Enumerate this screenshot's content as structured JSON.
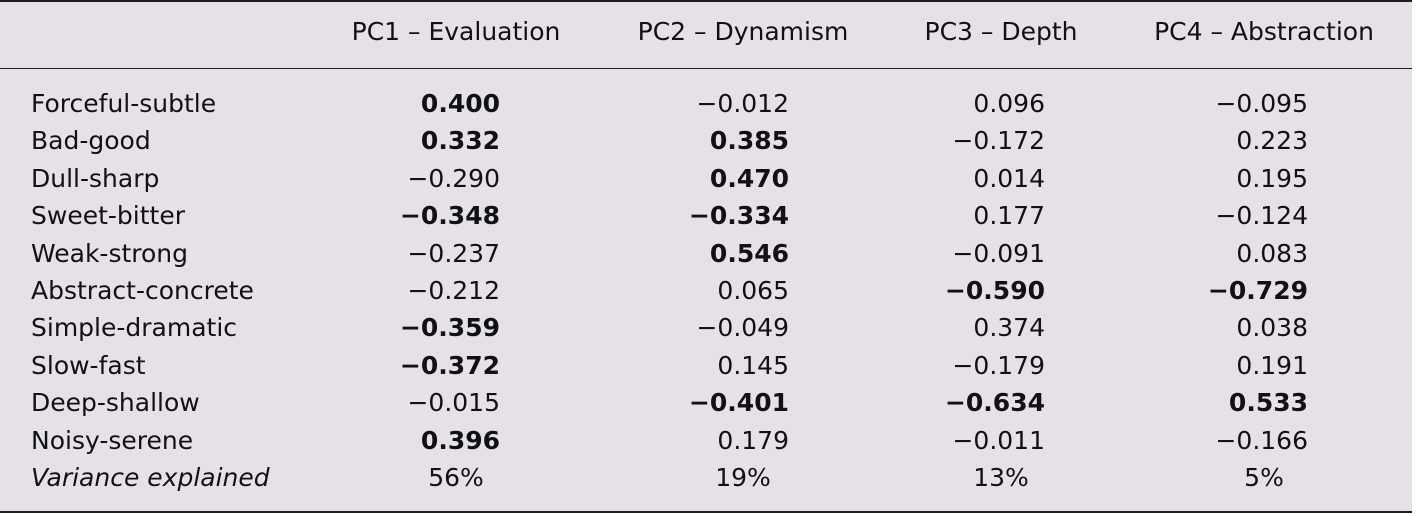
{
  "table": {
    "headers": [
      "",
      "PC1 – Evaluation",
      "PC2 – Dynamism",
      "PC3 – Depth",
      "PC4 – Abstraction"
    ],
    "rows": [
      {
        "label": "Forceful-subtle",
        "values": [
          {
            "text": "0.400",
            "bold": true
          },
          {
            "text": "−0.012",
            "bold": false
          },
          {
            "text": "0.096",
            "bold": false
          },
          {
            "text": "−0.095",
            "bold": false
          }
        ]
      },
      {
        "label": "Bad-good",
        "values": [
          {
            "text": "0.332",
            "bold": true
          },
          {
            "text": "0.385",
            "bold": true
          },
          {
            "text": "−0.172",
            "bold": false
          },
          {
            "text": "0.223",
            "bold": false
          }
        ]
      },
      {
        "label": "Dull-sharp",
        "values": [
          {
            "text": "−0.290",
            "bold": false
          },
          {
            "text": "0.470",
            "bold": true
          },
          {
            "text": "0.014",
            "bold": false
          },
          {
            "text": "0.195",
            "bold": false
          }
        ]
      },
      {
        "label": "Sweet-bitter",
        "values": [
          {
            "text": "−0.348",
            "bold": true
          },
          {
            "text": "−0.334",
            "bold": true
          },
          {
            "text": "0.177",
            "bold": false
          },
          {
            "text": "−0.124",
            "bold": false
          }
        ]
      },
      {
        "label": "Weak-strong",
        "values": [
          {
            "text": "−0.237",
            "bold": false
          },
          {
            "text": "0.546",
            "bold": true
          },
          {
            "text": "−0.091",
            "bold": false
          },
          {
            "text": "0.083",
            "bold": false
          }
        ]
      },
      {
        "label": "Abstract-concrete",
        "values": [
          {
            "text": "−0.212",
            "bold": false
          },
          {
            "text": "0.065",
            "bold": false
          },
          {
            "text": "−0.590",
            "bold": true
          },
          {
            "text": "−0.729",
            "bold": true
          }
        ]
      },
      {
        "label": "Simple-dramatic",
        "values": [
          {
            "text": "−0.359",
            "bold": true
          },
          {
            "text": "−0.049",
            "bold": false
          },
          {
            "text": "0.374",
            "bold": false
          },
          {
            "text": "0.038",
            "bold": false
          }
        ]
      },
      {
        "label": "Slow-fast",
        "values": [
          {
            "text": "−0.372",
            "bold": true
          },
          {
            "text": "0.145",
            "bold": false
          },
          {
            "text": "−0.179",
            "bold": false
          },
          {
            "text": "0.191",
            "bold": false
          }
        ]
      },
      {
        "label": "Deep-shallow",
        "values": [
          {
            "text": "−0.015",
            "bold": false
          },
          {
            "text": "−0.401",
            "bold": true
          },
          {
            "text": "−0.634",
            "bold": true
          },
          {
            "text": "0.533",
            "bold": true
          }
        ]
      },
      {
        "label": "Noisy-serene",
        "values": [
          {
            "text": "0.396",
            "bold": true
          },
          {
            "text": "0.179",
            "bold": false
          },
          {
            "text": "−0.011",
            "bold": false
          },
          {
            "text": "−0.166",
            "bold": false
          }
        ]
      }
    ],
    "variance": {
      "label": "Variance explained",
      "values": [
        "56%",
        "19%",
        "13%",
        "5%"
      ]
    }
  }
}
